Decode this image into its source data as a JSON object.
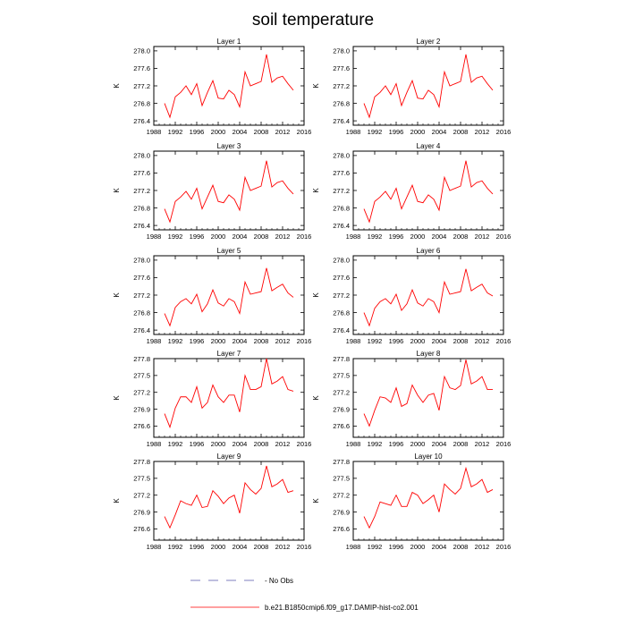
{
  "title": "soil temperature",
  "colors": {
    "series": "#ff0000",
    "no_obs": "#7f7fbf",
    "axis": "#000000"
  },
  "legend": {
    "no_obs_label": "- No Obs",
    "case_label": "b.e21.B1850cmip6.f09_g17.DAMIP-hist-co2.001"
  },
  "chart_data": [
    {
      "type": "line",
      "title": "Layer 1",
      "ylabel": "K",
      "xlim": [
        1988,
        2016
      ],
      "xticks": [
        1988,
        1992,
        1996,
        2000,
        2004,
        2008,
        2012,
        2016
      ],
      "ylim": [
        276.3,
        278.1
      ],
      "yticks": [
        276.4,
        276.8,
        277.2,
        277.6,
        278.0
      ],
      "ytick_labels": [
        "276.4",
        "276.8",
        "277.2",
        "277.6",
        "278.0"
      ],
      "series": [
        {
          "x": [
            1990,
            1991,
            1992,
            1993,
            1994,
            1995,
            1996,
            1997,
            1998,
            1999,
            2000,
            2001,
            2002,
            2003,
            2004,
            2005,
            2006,
            2007,
            2008,
            2009,
            2010,
            2011,
            2012,
            2013,
            2014
          ],
          "y": [
            276.8,
            276.48,
            276.95,
            277.05,
            277.2,
            277.0,
            277.25,
            276.75,
            277.05,
            277.32,
            276.92,
            276.9,
            277.1,
            277.0,
            276.72,
            277.52,
            277.2,
            277.25,
            277.3,
            277.92,
            277.28,
            277.38,
            277.42,
            277.25,
            277.1
          ]
        }
      ]
    },
    {
      "type": "line",
      "title": "Layer 2",
      "ylabel": "K",
      "xlim": [
        1988,
        2016
      ],
      "xticks": [
        1988,
        1992,
        1996,
        2000,
        2004,
        2008,
        2012,
        2016
      ],
      "ylim": [
        276.3,
        278.1
      ],
      "yticks": [
        276.4,
        276.8,
        277.2,
        277.6,
        278.0
      ],
      "ytick_labels": [
        "276.4",
        "276.8",
        "277.2",
        "277.6",
        "278.0"
      ],
      "series": [
        {
          "x": [
            1990,
            1991,
            1992,
            1993,
            1994,
            1995,
            1996,
            1997,
            1998,
            1999,
            2000,
            2001,
            2002,
            2003,
            2004,
            2005,
            2006,
            2007,
            2008,
            2009,
            2010,
            2011,
            2012,
            2013,
            2014
          ],
          "y": [
            276.8,
            276.48,
            276.95,
            277.05,
            277.2,
            277.0,
            277.25,
            276.75,
            277.05,
            277.32,
            276.92,
            276.9,
            277.1,
            277.0,
            276.72,
            277.52,
            277.2,
            277.25,
            277.3,
            277.92,
            277.28,
            277.38,
            277.42,
            277.25,
            277.1
          ]
        }
      ]
    },
    {
      "type": "line",
      "title": "Layer 3",
      "ylabel": "K",
      "xlim": [
        1988,
        2016
      ],
      "xticks": [
        1988,
        1992,
        1996,
        2000,
        2004,
        2008,
        2012,
        2016
      ],
      "ylim": [
        276.3,
        278.1
      ],
      "yticks": [
        276.4,
        276.8,
        277.2,
        277.6,
        278.0
      ],
      "ytick_labels": [
        "276.4",
        "276.8",
        "277.2",
        "277.6",
        "278.0"
      ],
      "series": [
        {
          "x": [
            1990,
            1991,
            1992,
            1993,
            1994,
            1995,
            1996,
            1997,
            1998,
            1999,
            2000,
            2001,
            2002,
            2003,
            2004,
            2005,
            2006,
            2007,
            2008,
            2009,
            2010,
            2011,
            2012,
            2013,
            2014
          ],
          "y": [
            276.78,
            276.48,
            276.95,
            277.05,
            277.18,
            277.0,
            277.25,
            276.78,
            277.05,
            277.32,
            276.95,
            276.92,
            277.1,
            277.0,
            276.75,
            277.5,
            277.2,
            277.25,
            277.3,
            277.88,
            277.28,
            277.38,
            277.42,
            277.25,
            277.12
          ]
        }
      ]
    },
    {
      "type": "line",
      "title": "Layer 4",
      "ylabel": "K",
      "xlim": [
        1988,
        2016
      ],
      "xticks": [
        1988,
        1992,
        1996,
        2000,
        2004,
        2008,
        2012,
        2016
      ],
      "ylim": [
        276.3,
        278.1
      ],
      "yticks": [
        276.4,
        276.8,
        277.2,
        277.6,
        278.0
      ],
      "ytick_labels": [
        "276.4",
        "276.8",
        "277.2",
        "277.6",
        "278.0"
      ],
      "series": [
        {
          "x": [
            1990,
            1991,
            1992,
            1993,
            1994,
            1995,
            1996,
            1997,
            1998,
            1999,
            2000,
            2001,
            2002,
            2003,
            2004,
            2005,
            2006,
            2007,
            2008,
            2009,
            2010,
            2011,
            2012,
            2013,
            2014
          ],
          "y": [
            276.78,
            276.48,
            276.95,
            277.05,
            277.18,
            277.0,
            277.25,
            276.78,
            277.05,
            277.32,
            276.95,
            276.92,
            277.1,
            277.0,
            276.75,
            277.5,
            277.2,
            277.25,
            277.3,
            277.88,
            277.28,
            277.38,
            277.42,
            277.25,
            277.12
          ]
        }
      ]
    },
    {
      "type": "line",
      "title": "Layer 5",
      "ylabel": "K",
      "xlim": [
        1988,
        2016
      ],
      "xticks": [
        1988,
        1992,
        1996,
        2000,
        2004,
        2008,
        2012,
        2016
      ],
      "ylim": [
        276.3,
        278.1
      ],
      "yticks": [
        276.4,
        276.8,
        277.2,
        277.6,
        278.0
      ],
      "ytick_labels": [
        "276.4",
        "276.8",
        "277.2",
        "277.6",
        "278.0"
      ],
      "series": [
        {
          "x": [
            1990,
            1991,
            1992,
            1993,
            1994,
            1995,
            1996,
            1997,
            1998,
            1999,
            2000,
            2001,
            2002,
            2003,
            2004,
            2005,
            2006,
            2007,
            2008,
            2009,
            2010,
            2011,
            2012,
            2013,
            2014
          ],
          "y": [
            276.78,
            276.5,
            276.92,
            277.05,
            277.12,
            277.0,
            277.22,
            276.82,
            277.0,
            277.32,
            277.02,
            276.95,
            277.12,
            277.05,
            276.78,
            277.5,
            277.22,
            277.25,
            277.28,
            277.82,
            277.3,
            277.38,
            277.45,
            277.25,
            277.15
          ]
        }
      ]
    },
    {
      "type": "line",
      "title": "Layer 6",
      "ylabel": "K",
      "xlim": [
        1988,
        2016
      ],
      "xticks": [
        1988,
        1992,
        1996,
        2000,
        2004,
        2008,
        2012,
        2016
      ],
      "ylim": [
        276.3,
        278.1
      ],
      "yticks": [
        276.4,
        276.8,
        277.2,
        277.6,
        278.0
      ],
      "ytick_labels": [
        "276.4",
        "276.8",
        "277.2",
        "277.6",
        "278.0"
      ],
      "series": [
        {
          "x": [
            1990,
            1991,
            1992,
            1993,
            1994,
            1995,
            1996,
            1997,
            1998,
            1999,
            2000,
            2001,
            2002,
            2003,
            2004,
            2005,
            2006,
            2007,
            2008,
            2009,
            2010,
            2011,
            2012,
            2013,
            2014
          ],
          "y": [
            276.8,
            276.5,
            276.9,
            277.05,
            277.12,
            277.0,
            277.22,
            276.85,
            277.0,
            277.32,
            277.02,
            276.95,
            277.12,
            277.05,
            276.8,
            277.5,
            277.22,
            277.25,
            277.28,
            277.8,
            277.3,
            277.38,
            277.45,
            277.25,
            277.18
          ]
        }
      ]
    },
    {
      "type": "line",
      "title": "Layer 7",
      "ylabel": "K",
      "xlim": [
        1988,
        2016
      ],
      "xticks": [
        1988,
        1992,
        1996,
        2000,
        2004,
        2008,
        2012,
        2016
      ],
      "ylim": [
        276.4,
        277.8
      ],
      "yticks": [
        276.6,
        276.9,
        277.2,
        277.5,
        277.8
      ],
      "ytick_labels": [
        "276.6",
        "276.9",
        "277.2",
        "277.5",
        "277.8"
      ],
      "series": [
        {
          "x": [
            1990,
            1991,
            1992,
            1993,
            1994,
            1995,
            1996,
            1997,
            1998,
            1999,
            2000,
            2001,
            2002,
            2003,
            2004,
            2005,
            2006,
            2007,
            2008,
            2009,
            2010,
            2011,
            2012,
            2013,
            2014
          ],
          "y": [
            276.82,
            276.58,
            276.92,
            277.12,
            277.12,
            277.02,
            277.3,
            276.92,
            277.02,
            277.33,
            277.12,
            277.02,
            277.15,
            277.15,
            276.85,
            277.5,
            277.25,
            277.25,
            277.3,
            277.8,
            277.35,
            277.4,
            277.48,
            277.25,
            277.22
          ]
        }
      ]
    },
    {
      "type": "line",
      "title": "Layer 8",
      "ylabel": "K",
      "xlim": [
        1988,
        2016
      ],
      "xticks": [
        1988,
        1992,
        1996,
        2000,
        2004,
        2008,
        2012,
        2016
      ],
      "ylim": [
        276.4,
        277.8
      ],
      "yticks": [
        276.6,
        276.9,
        277.2,
        277.5,
        277.8
      ],
      "ytick_labels": [
        "276.6",
        "276.9",
        "277.2",
        "277.5",
        "277.8"
      ],
      "series": [
        {
          "x": [
            1990,
            1991,
            1992,
            1993,
            1994,
            1995,
            1996,
            1997,
            1998,
            1999,
            2000,
            2001,
            2002,
            2003,
            2004,
            2005,
            2006,
            2007,
            2008,
            2009,
            2010,
            2011,
            2012,
            2013,
            2014
          ],
          "y": [
            276.82,
            276.6,
            276.88,
            277.12,
            277.1,
            277.02,
            277.28,
            276.95,
            277.0,
            277.33,
            277.15,
            277.02,
            277.15,
            277.18,
            276.88,
            277.48,
            277.28,
            277.25,
            277.32,
            277.78,
            277.35,
            277.4,
            277.48,
            277.25,
            277.25
          ]
        }
      ]
    },
    {
      "type": "line",
      "title": "Layer 9",
      "ylabel": "K",
      "xlim": [
        1988,
        2016
      ],
      "xticks": [
        1988,
        1992,
        1996,
        2000,
        2004,
        2008,
        2012,
        2016
      ],
      "ylim": [
        276.4,
        277.8
      ],
      "yticks": [
        276.6,
        276.9,
        277.2,
        277.5,
        277.8
      ],
      "ytick_labels": [
        "276.6",
        "276.9",
        "277.2",
        "277.5",
        "277.8"
      ],
      "series": [
        {
          "x": [
            1990,
            1991,
            1992,
            1993,
            1994,
            1995,
            1996,
            1997,
            1998,
            1999,
            2000,
            2001,
            2002,
            2003,
            2004,
            2005,
            2006,
            2007,
            2008,
            2009,
            2010,
            2011,
            2012,
            2013,
            2014
          ],
          "y": [
            276.82,
            276.62,
            276.85,
            277.1,
            277.05,
            277.02,
            277.2,
            276.98,
            277.0,
            277.28,
            277.18,
            277.05,
            277.15,
            277.2,
            276.88,
            277.42,
            277.3,
            277.22,
            277.32,
            277.72,
            277.35,
            277.4,
            277.48,
            277.25,
            277.28
          ]
        }
      ]
    },
    {
      "type": "line",
      "title": "Layer 10",
      "ylabel": "K",
      "xlim": [
        1988,
        2016
      ],
      "xticks": [
        1988,
        1992,
        1996,
        2000,
        2004,
        2008,
        2012,
        2016
      ],
      "ylim": [
        276.4,
        277.8
      ],
      "yticks": [
        276.6,
        276.9,
        277.2,
        277.5,
        277.8
      ],
      "ytick_labels": [
        "276.6",
        "276.9",
        "277.2",
        "277.5",
        "277.8"
      ],
      "series": [
        {
          "x": [
            1990,
            1991,
            1992,
            1993,
            1994,
            1995,
            1996,
            1997,
            1998,
            1999,
            2000,
            2001,
            2002,
            2003,
            2004,
            2005,
            2006,
            2007,
            2008,
            2009,
            2010,
            2011,
            2012,
            2013,
            2014
          ],
          "y": [
            276.82,
            276.62,
            276.82,
            277.08,
            277.05,
            277.02,
            277.2,
            277.0,
            277.0,
            277.25,
            277.2,
            277.05,
            277.12,
            277.2,
            276.9,
            277.4,
            277.3,
            277.22,
            277.32,
            277.68,
            277.35,
            277.4,
            277.48,
            277.25,
            277.3
          ]
        }
      ]
    }
  ]
}
